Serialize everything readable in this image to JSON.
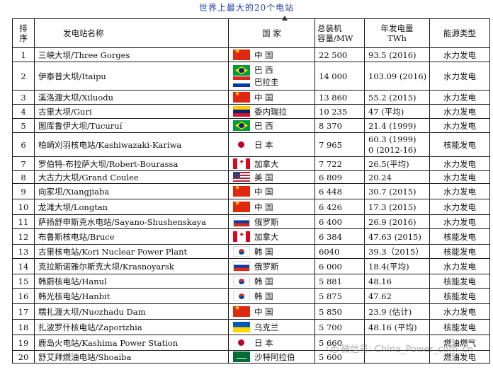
{
  "title": "世界上最大的20个电站",
  "headers": {
    "no": [
      "排",
      "序"
    ],
    "name": "发电站名称",
    "country": "国 家",
    "capacity": [
      "总装机",
      "容量/MW"
    ],
    "generation": [
      "年发电量",
      "TWh"
    ],
    "type": "能源类型"
  },
  "rows": [
    {
      "no": "1",
      "name": "三峡大坝/Three Gorges",
      "flags": [
        "cn-flag"
      ],
      "country": [
        "中 国"
      ],
      "capacity": "22 500",
      "generation": [
        "93.5 (2016)"
      ],
      "type": "水力发电"
    },
    {
      "no": "2",
      "name": "伊泰普大坝/Itaipu",
      "flags": [
        "br-flag",
        "py-flag"
      ],
      "country": [
        "巴 西",
        "巴拉圭"
      ],
      "capacity": "14 000",
      "generation": [
        "103.09 (2016)"
      ],
      "type": "水力发电"
    },
    {
      "no": "3",
      "name": "溪洛渡大坝/Xiluodu",
      "flags": [
        "cn-flag"
      ],
      "country": [
        "中 国"
      ],
      "capacity": "13 860",
      "generation": [
        "55.2 (2015)"
      ],
      "type": "水力发电"
    },
    {
      "no": "4",
      "name": "古里大坝/Guri",
      "flags": [
        "ve-flag"
      ],
      "country": [
        "委内瑞拉"
      ],
      "capacity": "10 235",
      "generation": [
        "47 (平均)"
      ],
      "type": "水力发电"
    },
    {
      "no": "5",
      "name": "图库鲁伊大坝/Tucuruí",
      "flags": [
        "br-flag"
      ],
      "country": [
        "巴 西"
      ],
      "capacity": "8 370",
      "generation": [
        "21.4 (1999)"
      ],
      "type": "水力发电"
    },
    {
      "no": "6",
      "name": "柏崎刈羽核电站/Kashiwazaki-Kariwa",
      "flags": [
        "jp-flag"
      ],
      "country": [
        "日 本"
      ],
      "capacity": "7 965",
      "generation": [
        "60.3 (1999)",
        "0 (2012-16)"
      ],
      "type": "核能发电"
    },
    {
      "no": "7",
      "name": "罗伯特-布拉萨大坝/Robert-Bourassa",
      "flags": [
        "ca-flag"
      ],
      "country": [
        "加拿大"
      ],
      "capacity": "7 722",
      "generation": [
        "26.5(平均)"
      ],
      "type": "水力发电"
    },
    {
      "no": "8",
      "name": "大古力大坝/Grand Coulee",
      "flags": [
        "us-flag"
      ],
      "country": [
        "美 国"
      ],
      "capacity": "6 809",
      "generation": [
        "20.24"
      ],
      "type": "水力发电"
    },
    {
      "no": "9",
      "name": "向家坝/Xiangjiaba",
      "flags": [
        "cn-flag"
      ],
      "country": [
        "中 国"
      ],
      "capacity": "6 448",
      "generation": [
        "30.7 (2015)"
      ],
      "type": "水力发电"
    },
    {
      "no": "10",
      "name": "龙滩大坝/Longtan",
      "flags": [
        "cn-flag"
      ],
      "country": [
        "中 国"
      ],
      "capacity": "6 426",
      "generation": [
        "17.3 (2015)"
      ],
      "type": "水力发电"
    },
    {
      "no": "11",
      "name": "萨扬舒申斯克水电站/Sayano-Shushenskaya",
      "flags": [
        "ru-flag"
      ],
      "country": [
        "俄罗斯"
      ],
      "capacity": "6 400",
      "generation": [
        "26.9 (2016)"
      ],
      "type": "水力发电"
    },
    {
      "no": "12",
      "name": "布鲁斯核电站/Bruce",
      "flags": [
        "ca-flag"
      ],
      "country": [
        "加拿大"
      ],
      "capacity": "6 384",
      "generation": [
        "47.63 (2015)"
      ],
      "type": "核能发电"
    },
    {
      "no": "13",
      "name": "古里核电站/Kori Nuclear Power Plant",
      "flags": [
        "kr-flag"
      ],
      "country": [
        "韩 国"
      ],
      "capacity": "6040",
      "generation": [
        "39.3（2015）"
      ],
      "type": "核能发电"
    },
    {
      "no": "14",
      "name": "克拉斯诺雅尔斯克大坝/Krasnoyarsk",
      "flags": [
        "ru-flag"
      ],
      "country": [
        "俄罗斯"
      ],
      "capacity": "6 000",
      "generation": [
        "18.4(平均)"
      ],
      "type": "水力发电"
    },
    {
      "no": "15",
      "name": "韩蔚核电站/Hanul",
      "flags": [
        "kr-flag"
      ],
      "country": [
        "韩 国"
      ],
      "capacity": "5 881",
      "generation": [
        "48.16"
      ],
      "type": "核能发电"
    },
    {
      "no": "16",
      "name": "韩光核电站/Hanbit",
      "flags": [
        "kr-flag"
      ],
      "country": [
        "韩 国"
      ],
      "capacity": "5 875",
      "generation": [
        "47.62"
      ],
      "type": "核能发电"
    },
    {
      "no": "17",
      "name": "糯扎渡大坝/Nuozhadu Dam",
      "flags": [
        "cn-flag"
      ],
      "country": [
        "中 国"
      ],
      "capacity": "5 850",
      "generation": [
        "23.9 (估计)"
      ],
      "type": "水力发电"
    },
    {
      "no": "18",
      "name": "扎波罗什核电站/Zaporizhia",
      "flags": [
        "ua-flag"
      ],
      "country": [
        "乌克兰"
      ],
      "capacity": "5 700",
      "generation": [
        "48.16 (平均)"
      ],
      "type": "核能发电"
    },
    {
      "no": "19",
      "name": "鹿岛火电站/Kashima Power Station",
      "flags": [
        "jp-flag"
      ],
      "country": [
        "日 本"
      ],
      "capacity": "5 660",
      "generation": [
        ""
      ],
      "type": "燃油燃气"
    },
    {
      "no": "20",
      "name": "舒艾拜燃油电站/Shoaiba",
      "flags": [
        "sa-flag"
      ],
      "country": [
        "沙特阿拉伯"
      ],
      "capacity": "5 600",
      "generation": [
        ""
      ],
      "type": "燃油发电"
    }
  ],
  "row_heights_note": "",
  "watermark": "微信号: China_Power_com_cn",
  "watermark_icon": "wechat-icon"
}
